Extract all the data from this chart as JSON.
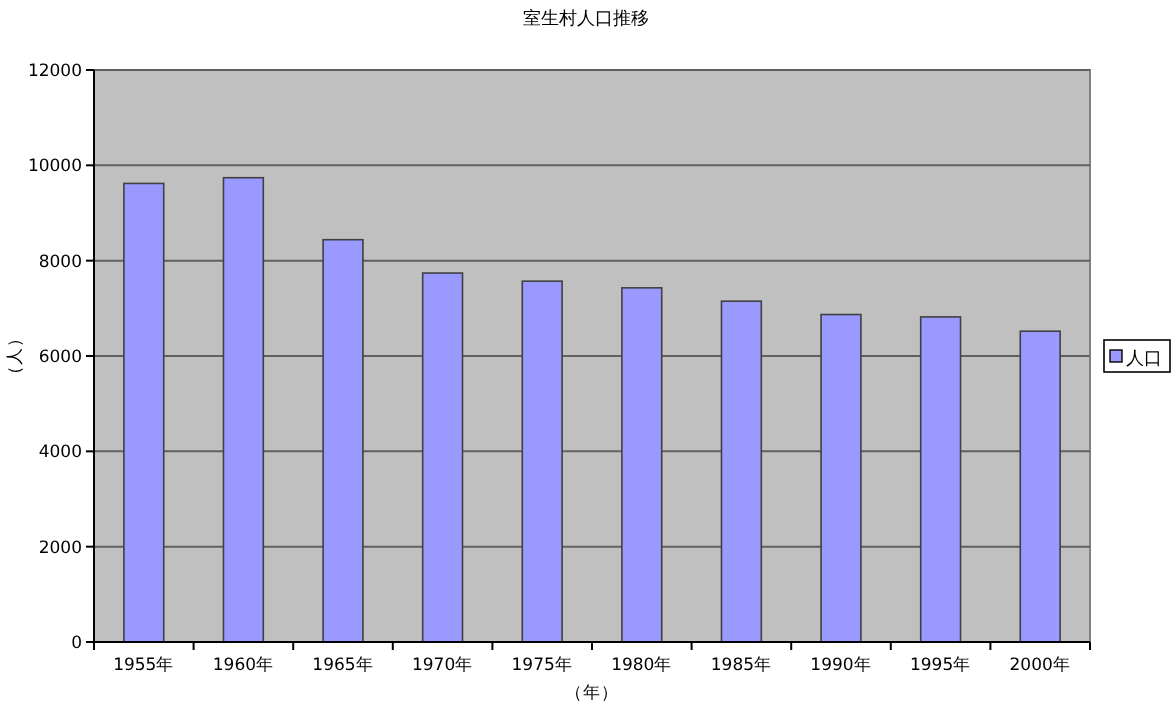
{
  "chart_data": {
    "type": "bar",
    "title": "室生村人口推移",
    "xlabel": "（年）",
    "ylabel": "（人）",
    "categories": [
      "1955年",
      "1960年",
      "1965年",
      "1970年",
      "1975年",
      "1980年",
      "1985年",
      "1990年",
      "1995年",
      "2000年"
    ],
    "series": [
      {
        "name": "人口",
        "color": "#9999ff",
        "values": [
          9620,
          9740,
          8440,
          7740,
          7570,
          7430,
          7150,
          6870,
          6820,
          6520
        ]
      }
    ],
    "ylim": [
      0,
      12000
    ],
    "yticks": [
      0,
      2000,
      4000,
      6000,
      8000,
      10000,
      12000
    ],
    "grid": "y",
    "legend": "right"
  }
}
